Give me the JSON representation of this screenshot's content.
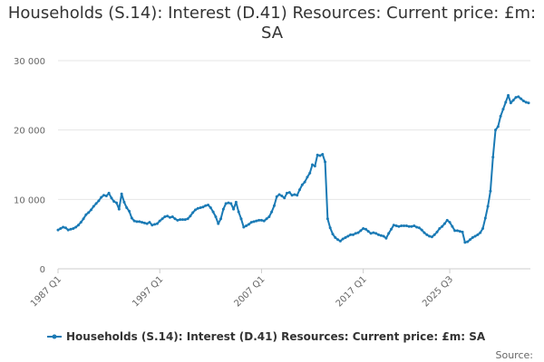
{
  "chart_data": {
    "type": "line",
    "title": "Households (S.14): Interest (D.41) Resources: Current price: £m: SA",
    "ylim": [
      0,
      30000
    ],
    "y_ticks": [
      "0",
      "10 000",
      "20 000",
      "30 000"
    ],
    "y_tick_values": [
      0,
      10000,
      20000,
      30000
    ],
    "x_ticks": [
      "1987 Q1",
      "1997 Q1",
      "2007 Q1",
      "2017 Q1",
      "2025 Q3"
    ],
    "grid": "horizontal",
    "legend_position": "bottom",
    "source_label": "Source:",
    "series": [
      {
        "name": "Households (S.14): Interest (D.41) Resources: Current price: £m: SA",
        "color": "#1a7ab5",
        "x_start": "1987 Q1",
        "values": [
          5600,
          5800,
          6000,
          5900,
          5600,
          5700,
          5800,
          6000,
          6300,
          6700,
          7200,
          7800,
          8100,
          8500,
          9000,
          9400,
          9800,
          10300,
          10600,
          10500,
          10900,
          10200,
          9700,
          9500,
          8600,
          10800,
          9600,
          8800,
          8300,
          7300,
          6900,
          6800,
          6800,
          6700,
          6600,
          6500,
          6700,
          6300,
          6400,
          6500,
          6900,
          7200,
          7500,
          7600,
          7400,
          7500,
          7200,
          7000,
          7100,
          7100,
          7100,
          7200,
          7600,
          8100,
          8500,
          8700,
          8800,
          8900,
          9100,
          9200,
          8800,
          8200,
          7500,
          6500,
          7200,
          8600,
          9400,
          9500,
          9400,
          8600,
          9600,
          8200,
          7200,
          6000,
          6200,
          6400,
          6700,
          6800,
          6900,
          7000,
          7000,
          6900,
          7200,
          7500,
          8200,
          9100,
          10400,
          10700,
          10500,
          10200,
          10900,
          11000,
          10600,
          10700,
          10600,
          11400,
          12100,
          12500,
          13200,
          13800,
          15000,
          14800,
          16400,
          16300,
          16500,
          15400,
          7200,
          5900,
          5000,
          4500,
          4200,
          4000,
          4300,
          4500,
          4700,
          4900,
          4900,
          5100,
          5200,
          5500,
          5800,
          5700,
          5400,
          5100,
          5200,
          5100,
          4900,
          4800,
          4700,
          4400,
          5100,
          5700,
          6300,
          6200,
          6100,
          6200,
          6200,
          6200,
          6100,
          6100,
          6200,
          6000,
          5900,
          5600,
          5200,
          4900,
          4700,
          4600,
          4900,
          5300,
          5800,
          6100,
          6500,
          7000,
          6700,
          6100,
          5500,
          5500,
          5400,
          5300,
          3800,
          3900,
          4200,
          4500,
          4700,
          4900,
          5200,
          5800,
          7300,
          9000,
          11200,
          16100,
          20000,
          20500,
          22000,
          23000,
          24000,
          25000,
          23900,
          24300,
          24700,
          24800,
          24500,
          24200,
          24000,
          23900
        ]
      }
    ]
  }
}
